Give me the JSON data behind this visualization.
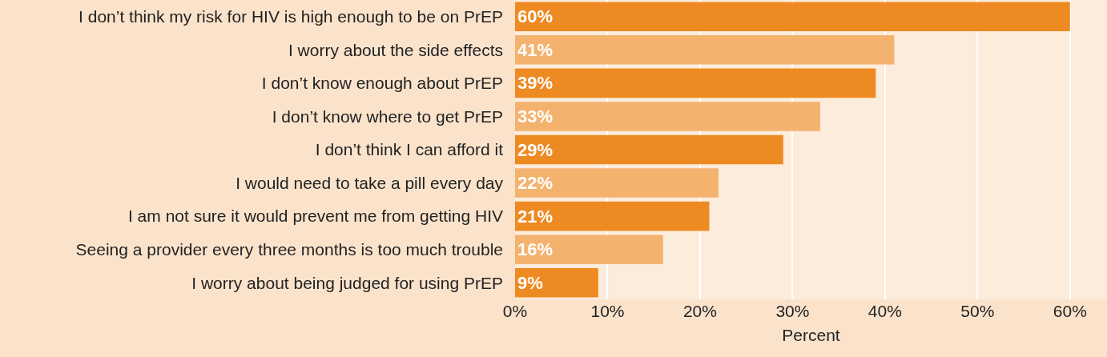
{
  "chart_data": {
    "type": "bar",
    "orientation": "horizontal",
    "xlabel": "Percent",
    "categories": [
      "I don’t think my risk for HIV is high enough to be on PrEP",
      "I worry about the side effects",
      "I don’t know enough about PrEP",
      "I don’t know where to get PrEP",
      "I don’t think I can afford it",
      "I would need to take a pill every day",
      "I am not sure it would prevent me from getting HIV",
      "Seeing a provider every three months is too much trouble",
      "I worry about being judged for using PrEP"
    ],
    "values": [
      60,
      41,
      39,
      33,
      29,
      22,
      21,
      16,
      9
    ],
    "value_labels": [
      "60%",
      "41%",
      "39%",
      "33%",
      "29%",
      "22%",
      "21%",
      "16%",
      "9%"
    ],
    "colors": [
      "#ee8a22",
      "#f4b26f",
      "#ee8a22",
      "#f4b26f",
      "#ee8a22",
      "#f4b26f",
      "#ee8a22",
      "#f4b26f",
      "#ee8a22"
    ],
    "xlim": [
      0,
      64
    ],
    "xticks": [
      {
        "value": 0,
        "label": "0%"
      },
      {
        "value": 10,
        "label": "10%"
      },
      {
        "value": 20,
        "label": "20%"
      },
      {
        "value": 30,
        "label": "30%"
      },
      {
        "value": 40,
        "label": "40%"
      },
      {
        "value": 50,
        "label": "50%"
      },
      {
        "value": 60,
        "label": "60%"
      }
    ],
    "grid": "x"
  }
}
